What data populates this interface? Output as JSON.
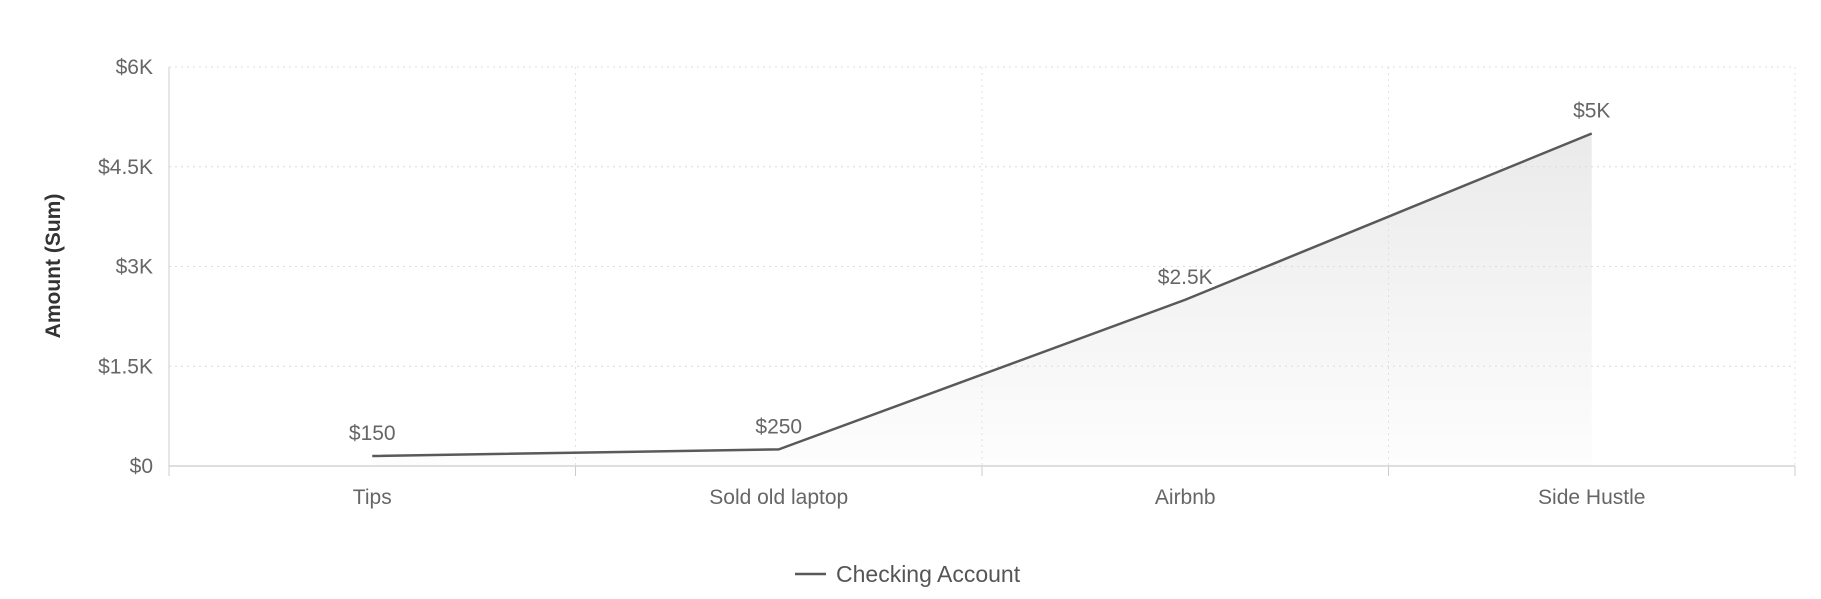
{
  "chart_data": {
    "type": "area",
    "categories": [
      "Tips",
      "Sold old laptop",
      "Airbnb",
      "Side Hustle"
    ],
    "series": [
      {
        "name": "Checking Account",
        "values": [
          150,
          250,
          2500,
          5000
        ],
        "labels": [
          "$150",
          "$250",
          "$2.5K",
          "$5K"
        ],
        "color": "#595959"
      }
    ],
    "ylabel": "Amount (Sum)",
    "ylim": [
      0,
      6000
    ],
    "yticks": [
      {
        "value": 0,
        "label": "$0"
      },
      {
        "value": 1500,
        "label": "$1.5K"
      },
      {
        "value": 3000,
        "label": "$3K"
      },
      {
        "value": 4500,
        "label": "$4.5K"
      },
      {
        "value": 6000,
        "label": "$6K"
      }
    ],
    "grid": true,
    "legend_position": "bottom-center"
  }
}
